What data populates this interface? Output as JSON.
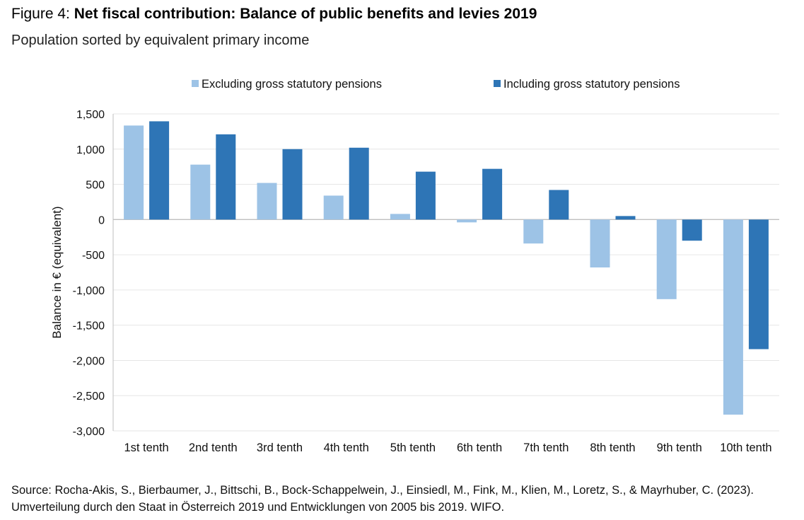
{
  "header": {
    "figure_label": "Figure 4:",
    "title": "Net fiscal contribution: Balance of public benefits and levies 2019",
    "subtitle": "Population sorted by equivalent primary income"
  },
  "source": "Source: Rocha-Akis, S., Bierbaumer, J., Bittschi, B., Bock-Schappelwein, J., Einsiedl, M., Fink, M., Klien, M., Loretz, S., & Mayrhuber, C. (2023). Umverteilung durch den Staat in Österreich 2019 und Entwicklungen von 2005 bis 2019. WIFO.",
  "chart_data": {
    "type": "bar",
    "categories": [
      "1st tenth",
      "2nd tenth",
      "3rd tenth",
      "4th tenth",
      "5th tenth",
      "6th tenth",
      "7th tenth",
      "8th tenth",
      "9th tenth",
      "10th tenth"
    ],
    "series": [
      {
        "name": "Excluding gross statutory pensions",
        "color": "#9dc3e6",
        "values": [
          1335,
          780,
          520,
          340,
          80,
          -40,
          -340,
          -680,
          -1130,
          -2770
        ]
      },
      {
        "name": "Including gross statutory pensions",
        "color": "#2e75b6",
        "values": [
          1395,
          1210,
          1000,
          1020,
          680,
          720,
          420,
          50,
          -300,
          -1840
        ]
      }
    ],
    "ylabel": "Balance in € (equivalent)",
    "ylim": [
      -3000,
      1500
    ],
    "yticks": [
      "1,500",
      "1,000",
      "500",
      "0",
      "-500",
      "-1,000",
      "-1,500",
      "-2,000",
      "-2,500",
      "-3,000"
    ],
    "ytick_values": [
      1500,
      1000,
      500,
      0,
      -500,
      -1000,
      -1500,
      -2000,
      -2500,
      -3000
    ],
    "grid": true,
    "legend_position": "top"
  }
}
